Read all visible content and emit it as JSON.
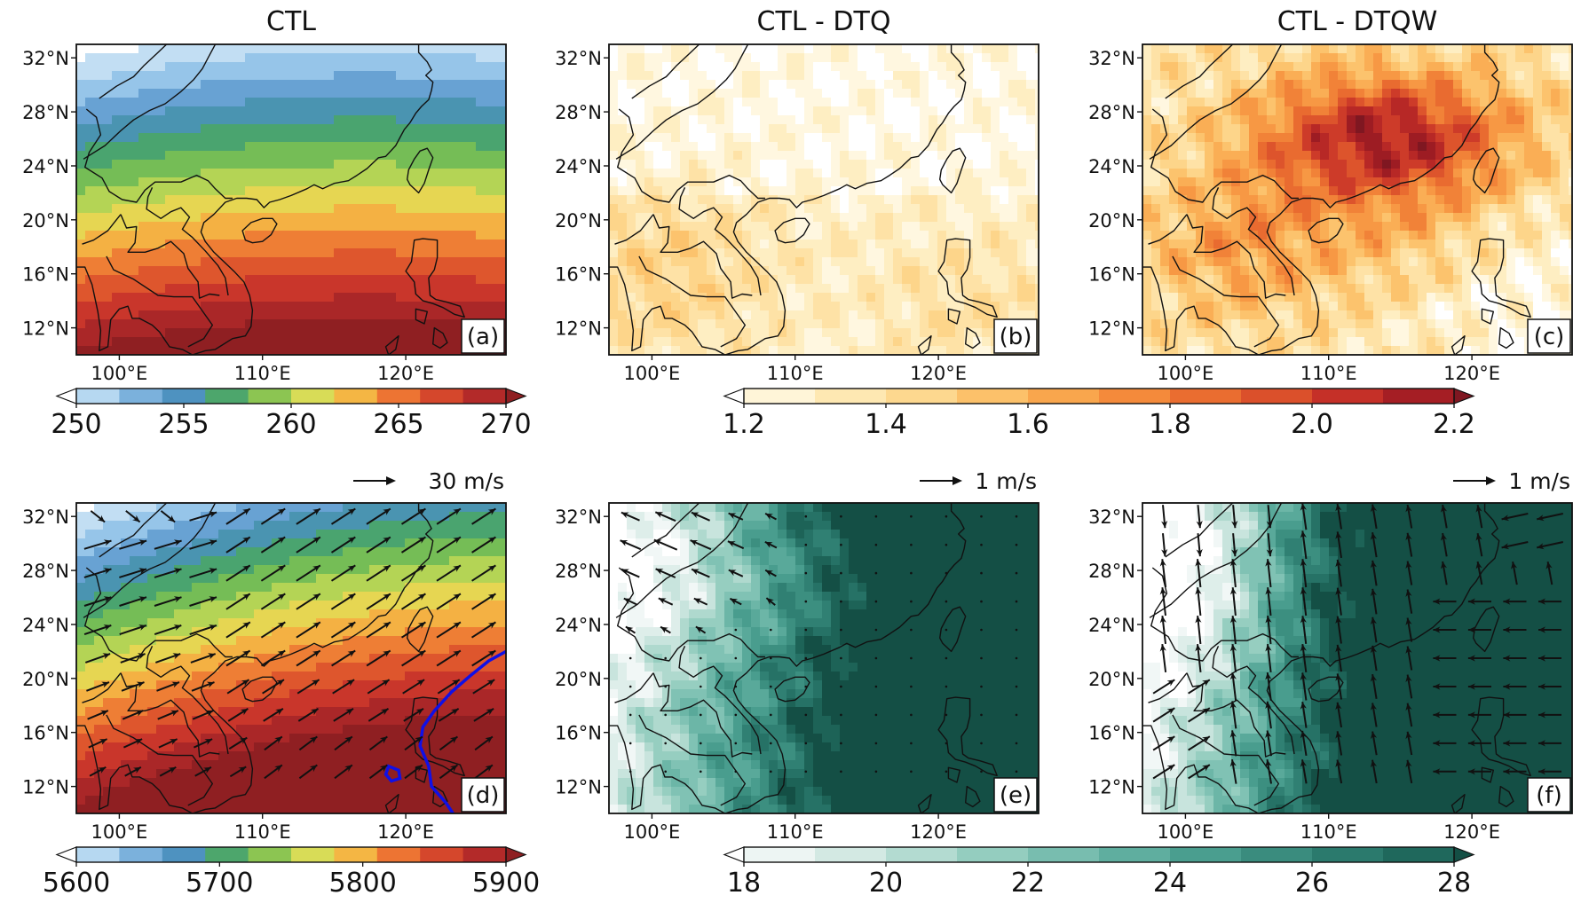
{
  "panels": [
    {
      "id": "a",
      "title": "CTL",
      "label": "(a)",
      "field": "temperature",
      "range": [
        250,
        270
      ],
      "palette": "spectral",
      "vectors": false,
      "ref_vector": ""
    },
    {
      "id": "b",
      "title": "CTL - DTQ",
      "label": "(b)",
      "field": "diff_weak",
      "range": [
        1.2,
        2.2
      ],
      "palette": "orange",
      "vectors": false,
      "ref_vector": ""
    },
    {
      "id": "c",
      "title": "CTL - DTQW",
      "label": "(c)",
      "field": "diff_strong",
      "range": [
        1.2,
        2.2
      ],
      "palette": "orange",
      "vectors": false,
      "ref_vector": ""
    },
    {
      "id": "d",
      "title": "",
      "label": "(d)",
      "field": "height",
      "range": [
        5600,
        5900
      ],
      "palette": "spectral",
      "vectors": true,
      "ref_vector": "30 m/s",
      "contour_color": "#1010e6"
    },
    {
      "id": "e",
      "title": "",
      "label": "(e)",
      "field": "teal_weak",
      "range": [
        18,
        28
      ],
      "palette": "teal",
      "vectors": true,
      "ref_vector": "1 m/s"
    },
    {
      "id": "f",
      "title": "",
      "label": "(f)",
      "field": "teal_strong",
      "range": [
        18,
        28
      ],
      "palette": "teal",
      "vectors": true,
      "ref_vector": "1 m/s"
    }
  ],
  "map_extent": {
    "lon": [
      97,
      127
    ],
    "lat": [
      10,
      33
    ]
  },
  "lat_ticks": [
    {
      "v": 32,
      "t": "32°N"
    },
    {
      "v": 28,
      "t": "28°N"
    },
    {
      "v": 24,
      "t": "24°N"
    },
    {
      "v": 20,
      "t": "20°N"
    },
    {
      "v": 16,
      "t": "16°N"
    },
    {
      "v": 12,
      "t": "12°N"
    }
  ],
  "lon_ticks": [
    {
      "v": 100,
      "t": "100°E"
    },
    {
      "v": 110,
      "t": "110°E"
    },
    {
      "v": 120,
      "t": "120°E"
    }
  ],
  "colorbars": [
    {
      "id": "cb1",
      "palette": "spectral",
      "levels": 10,
      "ticks": [
        "250",
        "255",
        "260",
        "265",
        "270"
      ]
    },
    {
      "id": "cb2",
      "palette": "orange",
      "levels": 10,
      "ticks": [
        "1.2",
        "1.4",
        "1.6",
        "1.8",
        "2.0",
        "2.2"
      ]
    },
    {
      "id": "cb3",
      "palette": "spectral",
      "levels": 10,
      "ticks": [
        "5600",
        "5700",
        "5800",
        "5900"
      ]
    },
    {
      "id": "cb4",
      "palette": "teal",
      "levels": 10,
      "ticks": [
        "18",
        "20",
        "22",
        "24",
        "26",
        "28"
      ]
    }
  ],
  "palettes": {
    "spectral": [
      "#ffffff",
      "#c5e0f4",
      "#9ccaec",
      "#6fa7d6",
      "#4f91c7",
      "#3f9a7b",
      "#5db55a",
      "#96c850",
      "#d2df5a",
      "#f5d04c",
      "#f4a03e",
      "#ec7032",
      "#da4f2c",
      "#c6322b",
      "#a82628",
      "#8f1f22"
    ],
    "orange": [
      "#ffffff",
      "#fff5d8",
      "#fee8b2",
      "#fdd88f",
      "#fcc16a",
      "#f9a64d",
      "#f48a3b",
      "#ea6d30",
      "#db502b",
      "#c53028",
      "#a51e24",
      "#7f1721"
    ],
    "teal": [
      "#ffffff",
      "#edf5f3",
      "#d3e9e3",
      "#b3dbd1",
      "#94cdbf",
      "#78bdaf",
      "#5fae9f",
      "#4a9e8f",
      "#3a8c7e",
      "#2b7a6d",
      "#1f685c",
      "#144f45"
    ]
  }
}
